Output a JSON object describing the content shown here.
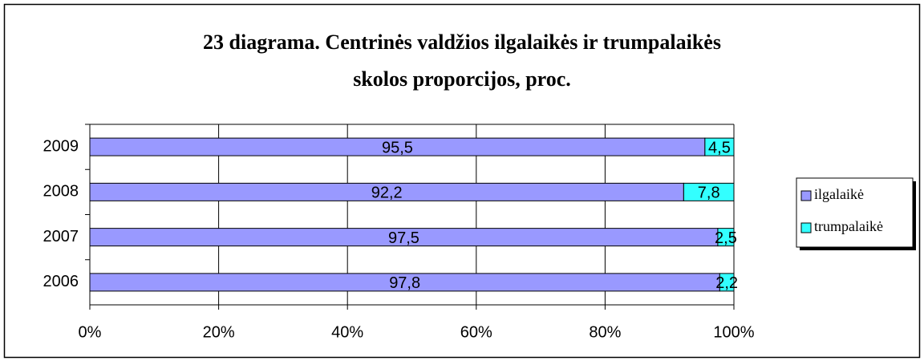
{
  "chart_data": {
    "type": "stacked_barh",
    "title": [
      "23 diagrama. Centrinės valdžios ilgalaikės ir trumpalaikės",
      "skolos proporcijos, proc."
    ],
    "categories": [
      "2009",
      "2008",
      "2007",
      "2006"
    ],
    "series": [
      {
        "name": "ilgalaikė",
        "color": "#9999ff",
        "values": [
          95.5,
          92.2,
          97.5,
          97.8
        ],
        "value_labels": [
          "95,5",
          "92,2",
          "97,5",
          "97,8"
        ]
      },
      {
        "name": "trumpalaikė",
        "color": "#33ffff",
        "values": [
          4.5,
          7.8,
          2.5,
          2.2
        ],
        "value_labels": [
          "4,5",
          "7,8",
          "2,5",
          "2,2"
        ]
      }
    ],
    "xlim": [
      0,
      100
    ],
    "xticks": [
      {
        "value": 0,
        "label": "0%"
      },
      {
        "value": 20,
        "label": "20%"
      },
      {
        "value": 40,
        "label": "40%"
      },
      {
        "value": 60,
        "label": "60%"
      },
      {
        "value": 80,
        "label": "80%"
      },
      {
        "value": 100,
        "label": "100%"
      }
    ],
    "grid": true,
    "legend": "right"
  }
}
